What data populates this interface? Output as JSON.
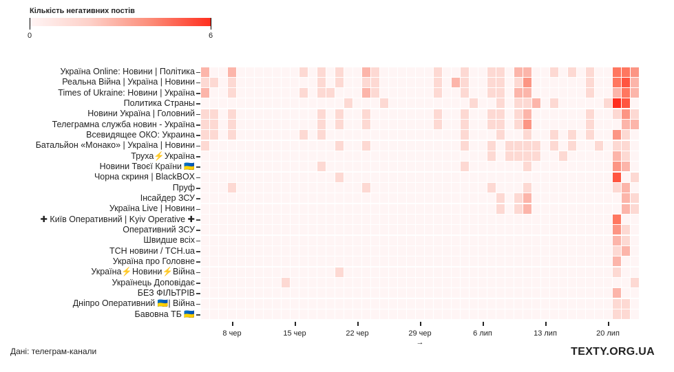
{
  "legend": {
    "title": "Кількість негативних постів",
    "min_label": "0",
    "max_label": "6"
  },
  "footer": {
    "source": "Дані: телеграм-канали",
    "brand": "TEXTY.ORG.UA"
  },
  "chart_data": {
    "type": "heatmap",
    "title": "Кількість негативних постів",
    "value_range": [
      0,
      6
    ],
    "color_scale": [
      "#fff5f5",
      "#fdd9d3",
      "#fcb5aa",
      "#fc9584",
      "#ff7760",
      "#ff5540",
      "#ff2e1e"
    ],
    "x_start_date": "5 чер",
    "x_days": 49,
    "x_ticks": [
      {
        "day_index": 3,
        "label": "8 чер"
      },
      {
        "day_index": 10,
        "label": "15 чер"
      },
      {
        "day_index": 17,
        "label": "22 чер"
      },
      {
        "day_index": 24,
        "label": "29 чер",
        "sub": "→"
      },
      {
        "day_index": 31,
        "label": "6 лип"
      },
      {
        "day_index": 38,
        "label": "13 лип"
      },
      {
        "day_index": 45,
        "label": "20 лип"
      }
    ],
    "rows": [
      {
        "label": "Україна Online: Новини | Політика",
        "values": "2002000 0000101 0100210 0000010 0100110 2200101 0100443"
      },
      {
        "label": "Реальна Війна | Україна | Новини",
        "values": "1101000 0000001 0100110 0000010 2100110 1300000 0100452"
      },
      {
        "label": "Times of Ukraine: Новини | Україна",
        "values": "2001000 0000101 1000210 0000010 0100110 2200000 0100242"
      },
      {
        "label": "Политика Страны",
        "values": "0000000 0000000 0010001 0000000 0010010 1120100 0001650"
      },
      {
        "label": "Новини Україна | Головний",
        "values": "1101000 0000001 0100100 0000010 0100110 1200000 0100131"
      },
      {
        "label": "Телеграмна служба новин - Україна",
        "values": "1101000 0000001 0100100 0000010 0100110 1300000 0100022"
      },
      {
        "label": "Всевидящее ОКО: Украина",
        "values": "1101000 0000101 0000000 0000000 0100010 0100101 0100310"
      },
      {
        "label": "Батальйон «Монако» | Україна | Новини",
        "values": "1000000 0000000 0100100 0000000 0100101 1110101 0010110"
      },
      {
        "label": "Труха⚡️Україна",
        "values": "0000000 0000000 0000000 0000000 0000101 1110010 0000210"
      },
      {
        "label": "Новини Твоєї Країни 🇺🇦",
        "values": "0000000 0000001 0000000 0000000 0100000 0100000 0000320"
      },
      {
        "label": "Чорна скриня | BlackBOX",
        "values": "0000000 0000000 0100000 0000000 0000000 0000000 0000501"
      },
      {
        "label": "Пруф",
        "values": "0001000 0000000 0000100 0000000 0000100 0100000 0000120"
      },
      {
        "label": "Інсайдер ЗСУ",
        "values": "0000000 0000000 0000000 0000000 0000010 1200000 0000021"
      },
      {
        "label": "Україна Live | Новини",
        "values": "0000000 0000000 0000000 0000000 0000010 1200000 0000021"
      },
      {
        "label": "✚ Київ Оперативний | Kyiv Operative ✚",
        "values": "0000000 0000000 0000000 0000000 0000000 0000000 0000400"
      },
      {
        "label": "Оперативний ЗСУ",
        "values": "0000000 0000000 0000000 0000000 0000000 0000000 0000310"
      },
      {
        "label": "Швидше всіх",
        "values": "0000000 0000000 0000000 0000000 0000000 0000000 0000210"
      },
      {
        "label": "ТСН новини / TCH.ua",
        "values": "0000000 0000000 0000000 0000000 0000000 0000000 0000120"
      },
      {
        "label": "Україна про Головне",
        "values": "0000000 0000000 0000000 0000000 0000000 0000000 0000200"
      },
      {
        "label": "Україна⚡️Новини⚡️Війна",
        "values": "0000000 0000000 0100000 0000000 0000000 0000000 0000100"
      },
      {
        "label": "Українець Доповідає",
        "values": "0000000 0010000 0000000 0000000 0000000 0000000 0000001"
      },
      {
        "label": "БЕЗ ФІЛЬТРІВ",
        "values": "0000000 0000000 0000000 0000000 0000000 0000000 0000200"
      },
      {
        "label": "Дніпро Оперативний 🇺🇦| Війна",
        "values": "0000000 0000000 0000000 0000000 0000000 0000000 0000110"
      },
      {
        "label": "Бавовна ТБ 🇺🇦",
        "values": "0000000 0000000 0000000 0000000 0000000 0000000 0000110"
      }
    ]
  }
}
